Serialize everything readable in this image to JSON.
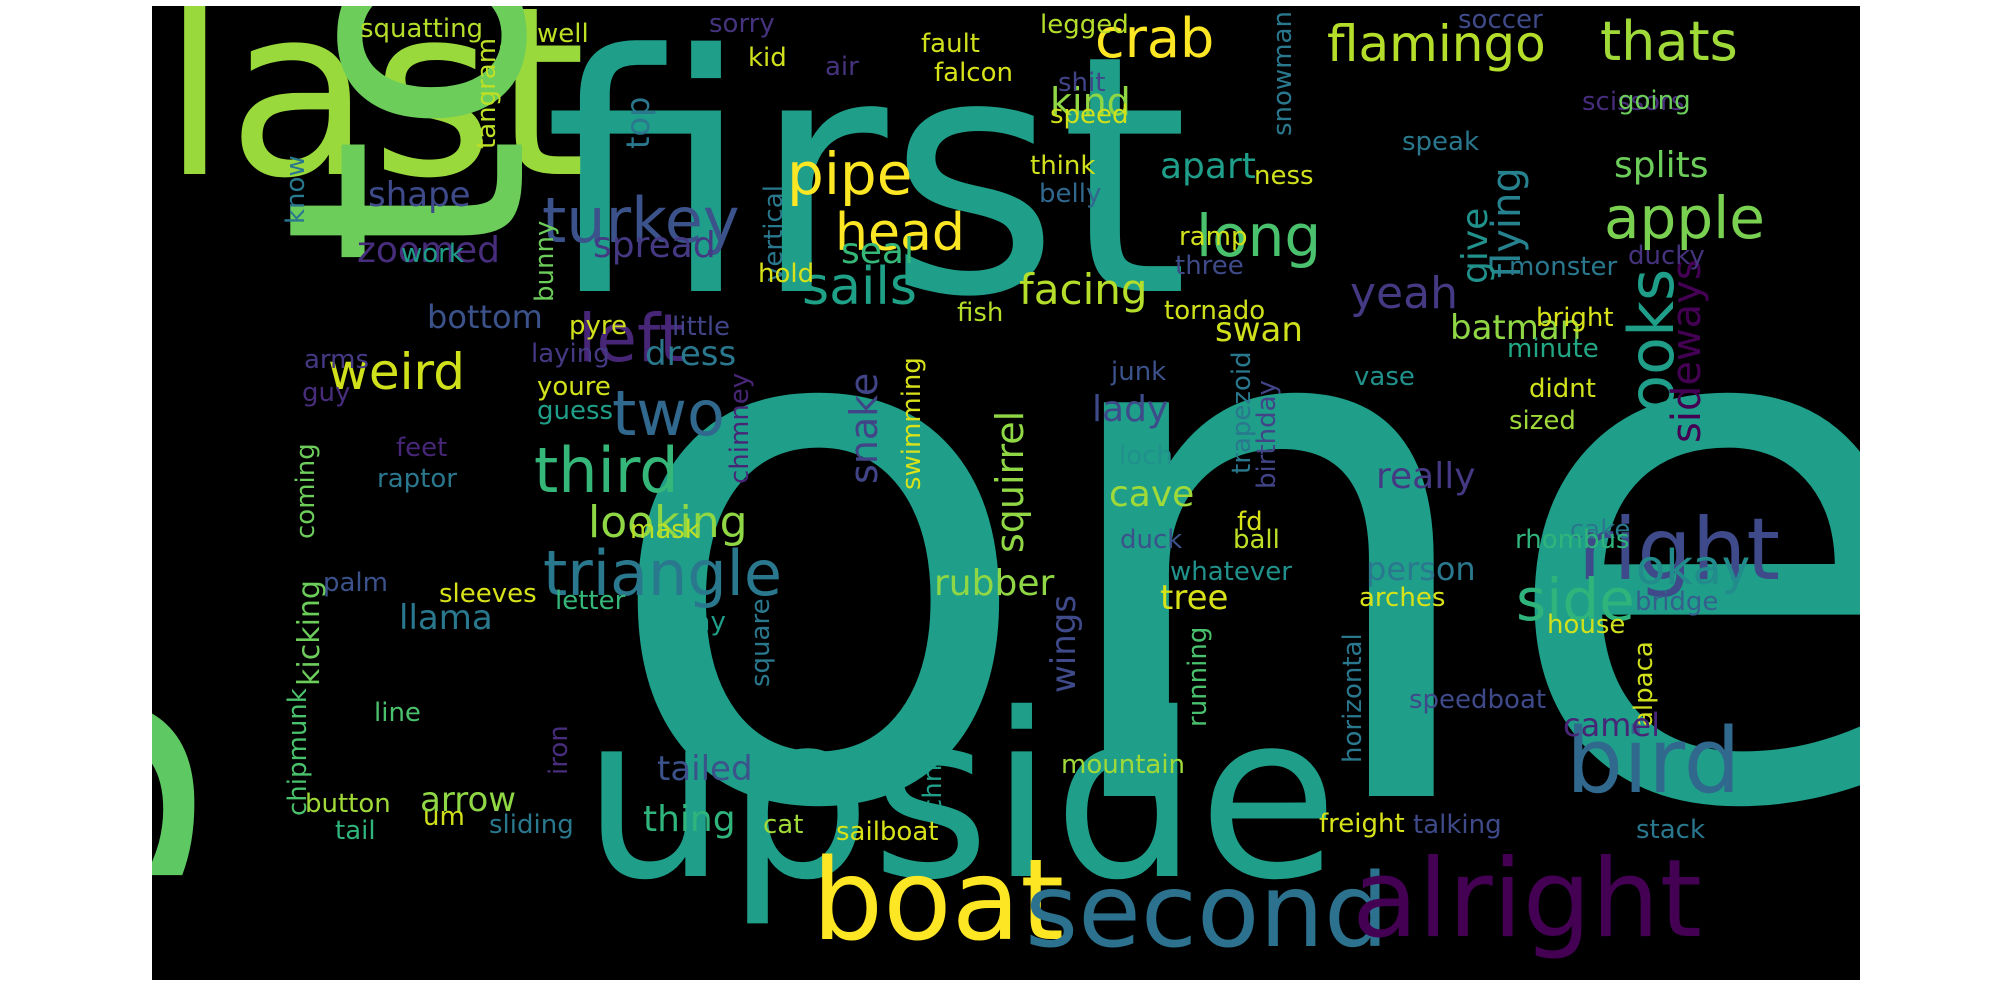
{
  "wordcloud": {
    "background": "#000000",
    "words": [
      {
        "text": "one",
        "color": "#1f9e89"
      },
      {
        "text": "first",
        "color": "#1f9e89"
      },
      {
        "text": "upside",
        "color": "#1f9e89"
      },
      {
        "text": "last",
        "color": "#9ad93c"
      },
      {
        "text": "to",
        "color": "#6ccd5a"
      },
      {
        "text": "g",
        "color": "#5ec962"
      },
      {
        "text": "boat",
        "color": "#fde725"
      },
      {
        "text": "second",
        "color": "#2c728e"
      },
      {
        "text": "alright",
        "color": "#440154"
      },
      {
        "text": "bird",
        "color": "#31688e"
      },
      {
        "text": "right",
        "color": "#3e4a89"
      },
      {
        "text": "crab",
        "color": "#fde725"
      },
      {
        "text": "flamingo",
        "color": "#b5de2b"
      },
      {
        "text": "thats",
        "color": "#a0da39"
      },
      {
        "text": "pipe",
        "color": "#fde725"
      },
      {
        "text": "turkey",
        "color": "#3b528b"
      },
      {
        "text": "left",
        "color": "#482677"
      },
      {
        "text": "head",
        "color": "#fde725"
      },
      {
        "text": "apple",
        "color": "#7ad151"
      },
      {
        "text": "long",
        "color": "#4ac16d"
      },
      {
        "text": "kind",
        "color": "#8fd744"
      },
      {
        "text": "splits",
        "color": "#6ccd5a"
      },
      {
        "text": "apart",
        "color": "#1f9e89"
      },
      {
        "text": "looks",
        "color": "#1f9e89"
      },
      {
        "text": "sails",
        "color": "#1fa188"
      },
      {
        "text": "third",
        "color": "#35b779"
      },
      {
        "text": "two",
        "color": "#31688e"
      },
      {
        "text": "weird",
        "color": "#d0e11c"
      },
      {
        "text": "triangle",
        "color": "#2a788e"
      },
      {
        "text": "looking",
        "color": "#8fd744"
      },
      {
        "text": "side",
        "color": "#2fb47c"
      },
      {
        "text": "okay",
        "color": "#228c8d"
      },
      {
        "text": "facing",
        "color": "#b5de2b"
      },
      {
        "text": "yeah",
        "color": "#443983"
      },
      {
        "text": "swan",
        "color": "#d0e11c"
      },
      {
        "text": "batman",
        "color": "#8fd744"
      },
      {
        "text": "flying",
        "color": "#26828e"
      },
      {
        "text": "give",
        "color": "#21918c"
      },
      {
        "text": "sideways",
        "color": "#440154"
      },
      {
        "text": "shape",
        "color": "#3e4a89"
      },
      {
        "text": "zoomed",
        "color": "#472d7b"
      },
      {
        "text": "spread",
        "color": "#443983"
      },
      {
        "text": "seal",
        "color": "#35b779"
      },
      {
        "text": "top",
        "color": "#2a788e"
      },
      {
        "text": "squatting",
        "color": "#b5de2b"
      },
      {
        "text": "well",
        "color": "#bddf26"
      },
      {
        "text": "sorry",
        "color": "#46337e"
      },
      {
        "text": "kid",
        "color": "#d0e11c"
      },
      {
        "text": "fault",
        "color": "#d0e11c"
      },
      {
        "text": "legged",
        "color": "#b5de2b"
      },
      {
        "text": "air",
        "color": "#46337e"
      },
      {
        "text": "falcon",
        "color": "#d8e219"
      },
      {
        "text": "shit",
        "color": "#414487"
      },
      {
        "text": "soccer",
        "color": "#3e4a89"
      },
      {
        "text": "scissors",
        "color": "#472d7b"
      },
      {
        "text": "going",
        "color": "#6ccd5a"
      },
      {
        "text": "speed",
        "color": "#d0e11c"
      },
      {
        "text": "snowman",
        "color": "#2a788e"
      },
      {
        "text": "tangram",
        "color": "#bddf26"
      },
      {
        "text": "think",
        "color": "#d0e11c"
      },
      {
        "text": "belly",
        "color": "#31688e"
      },
      {
        "text": "speak",
        "color": "#2a788e"
      },
      {
        "text": "ness",
        "color": "#d0e11c"
      },
      {
        "text": "vertical",
        "color": "#2a788e"
      },
      {
        "text": "know",
        "color": "#2a788e"
      },
      {
        "text": "work",
        "color": "#1f9e89"
      },
      {
        "text": "hold",
        "color": "#d8e219"
      },
      {
        "text": "ramp",
        "color": "#d0e11c"
      },
      {
        "text": "three",
        "color": "#3e4a89"
      },
      {
        "text": "ducky",
        "color": "#46337e"
      },
      {
        "text": "monster",
        "color": "#2a788e"
      },
      {
        "text": "bunny",
        "color": "#6ccd5a"
      },
      {
        "text": "bottom",
        "color": "#3b528b"
      },
      {
        "text": "pyre",
        "color": "#d0e11c"
      },
      {
        "text": "little",
        "color": "#414487"
      },
      {
        "text": "fish",
        "color": "#b5de2b"
      },
      {
        "text": "tornado",
        "color": "#d0e11c"
      },
      {
        "text": "bright",
        "color": "#d8e219"
      },
      {
        "text": "minute",
        "color": "#22a884"
      },
      {
        "text": "laying",
        "color": "#443983"
      },
      {
        "text": "dress",
        "color": "#2a788e"
      },
      {
        "text": "arms",
        "color": "#443983"
      },
      {
        "text": "guy",
        "color": "#472d7b"
      },
      {
        "text": "youre",
        "color": "#d0e11c"
      },
      {
        "text": "guess",
        "color": "#1f9e89"
      },
      {
        "text": "chimney",
        "color": "#482677"
      },
      {
        "text": "snake",
        "color": "#414487"
      },
      {
        "text": "swimming",
        "color": "#d8e219"
      },
      {
        "text": "squirrel",
        "color": "#8fd744"
      },
      {
        "text": "lady",
        "color": "#3e4a89"
      },
      {
        "text": "junk",
        "color": "#3b528b"
      },
      {
        "text": "birthday",
        "color": "#414487"
      },
      {
        "text": "vase",
        "color": "#21918c"
      },
      {
        "text": "didnt",
        "color": "#d0e11c"
      },
      {
        "text": "sized",
        "color": "#a0da39"
      },
      {
        "text": "feet",
        "color": "#482677"
      },
      {
        "text": "raptor",
        "color": "#2a788e"
      },
      {
        "text": "coming",
        "color": "#6ccd5a"
      },
      {
        "text": "cave",
        "color": "#a0da39"
      },
      {
        "text": "loch",
        "color": "#21918c"
      },
      {
        "text": "trapezoid",
        "color": "#2a788e"
      },
      {
        "text": "really",
        "color": "#443983"
      },
      {
        "text": "mask",
        "color": "#bddf26"
      },
      {
        "text": "fd",
        "color": "#d8e219"
      },
      {
        "text": "ball",
        "color": "#bddf26"
      },
      {
        "text": "cake",
        "color": "#2a788e"
      },
      {
        "text": "duck",
        "color": "#3b528b"
      },
      {
        "text": "rhombus",
        "color": "#2fb47c"
      },
      {
        "text": "kicking",
        "color": "#6ccd5a"
      },
      {
        "text": "palm",
        "color": "#3b528b"
      },
      {
        "text": "rubber",
        "color": "#8fd744"
      },
      {
        "text": "person",
        "color": "#2a788e"
      },
      {
        "text": "whatever",
        "color": "#21918c"
      },
      {
        "text": "tree",
        "color": "#d8e219"
      },
      {
        "text": "arches",
        "color": "#d8e219"
      },
      {
        "text": "bridge",
        "color": "#35608d"
      },
      {
        "text": "sleeves",
        "color": "#d8e219"
      },
      {
        "text": "letter",
        "color": "#35b779"
      },
      {
        "text": "llama",
        "color": "#2a788e"
      },
      {
        "text": "say",
        "color": "#1f9e89"
      },
      {
        "text": "square",
        "color": "#2a788e"
      },
      {
        "text": "wings",
        "color": "#3e4a89"
      },
      {
        "text": "house",
        "color": "#d0e11c"
      },
      {
        "text": "alpaca",
        "color": "#d0e11c"
      },
      {
        "text": "speedboat",
        "color": "#3e4a89"
      },
      {
        "text": "horizontal",
        "color": "#2a788e"
      },
      {
        "text": "running",
        "color": "#4ac16d"
      },
      {
        "text": "chipmunk",
        "color": "#4ac16d"
      },
      {
        "text": "line",
        "color": "#4ac16d"
      },
      {
        "text": "iron",
        "color": "#472d7b"
      },
      {
        "text": "christmas",
        "color": "#1f9e89"
      },
      {
        "text": "camel",
        "color": "#482677"
      },
      {
        "text": "tailed",
        "color": "#3b528b"
      },
      {
        "text": "mountain",
        "color": "#a0da39"
      },
      {
        "text": "arrow",
        "color": "#8fd744"
      },
      {
        "text": "button",
        "color": "#a0da39"
      },
      {
        "text": "um",
        "color": "#d0e11c"
      },
      {
        "text": "tail",
        "color": "#2fb47c"
      },
      {
        "text": "sliding",
        "color": "#2a788e"
      },
      {
        "text": "thing",
        "color": "#2fb47c"
      },
      {
        "text": "cat",
        "color": "#a0da39"
      },
      {
        "text": "sailboat",
        "color": "#d8e219"
      },
      {
        "text": "freight",
        "color": "#d8e219"
      },
      {
        "text": "talking",
        "color": "#3e4a89"
      },
      {
        "text": "stack",
        "color": "#2a788e"
      }
    ]
  }
}
